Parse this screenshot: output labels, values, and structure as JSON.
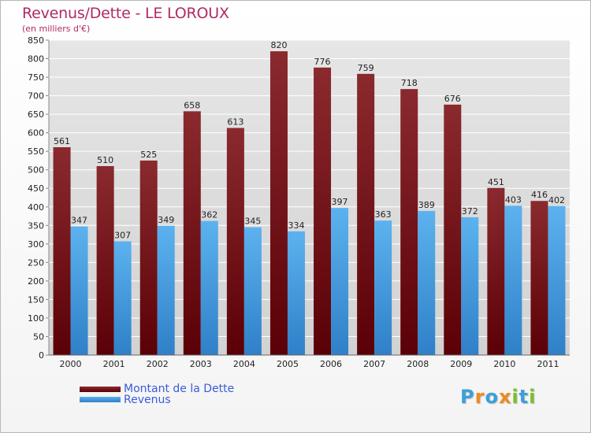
{
  "header": {
    "title": "Revenus/Dette - LE LOROUX",
    "subtitle": "(en milliers d'€)"
  },
  "legend": {
    "items": [
      {
        "label": "Montant de la Dette",
        "color": "#7a1518"
      },
      {
        "label": "Revenus",
        "color": "#4aa3e6"
      }
    ]
  },
  "brand": {
    "text": "Proxiti",
    "letters": [
      "P",
      "r",
      "o",
      "x",
      "i",
      "t",
      "i"
    ],
    "colors": [
      "#3aa0dc",
      "#f08a1c",
      "#3aa0dc",
      "#f08a1c",
      "#7bbf2a",
      "#3aa0dc",
      "#7bbf2a"
    ]
  },
  "chart_data": {
    "type": "bar",
    "title": "Revenus/Dette - LE LOROUX",
    "subtitle": "(en milliers d'€)",
    "xlabel": "",
    "ylabel": "",
    "ylim": [
      0,
      850
    ],
    "ytick_step": 50,
    "grid": true,
    "legend_position": "bottom-left",
    "categories": [
      "2000",
      "2001",
      "2002",
      "2003",
      "2004",
      "2005",
      "2006",
      "2007",
      "2008",
      "2009",
      "2010",
      "2011"
    ],
    "series": [
      {
        "name": "Montant de la Dette",
        "color": "#7a1518",
        "values": [
          561,
          510,
          525,
          658,
          613,
          820,
          776,
          759,
          718,
          676,
          451,
          416
        ]
      },
      {
        "name": "Revenus",
        "color": "#4aa3e6",
        "values": [
          347,
          307,
          349,
          362,
          345,
          334,
          397,
          363,
          389,
          372,
          403,
          402
        ]
      }
    ]
  }
}
